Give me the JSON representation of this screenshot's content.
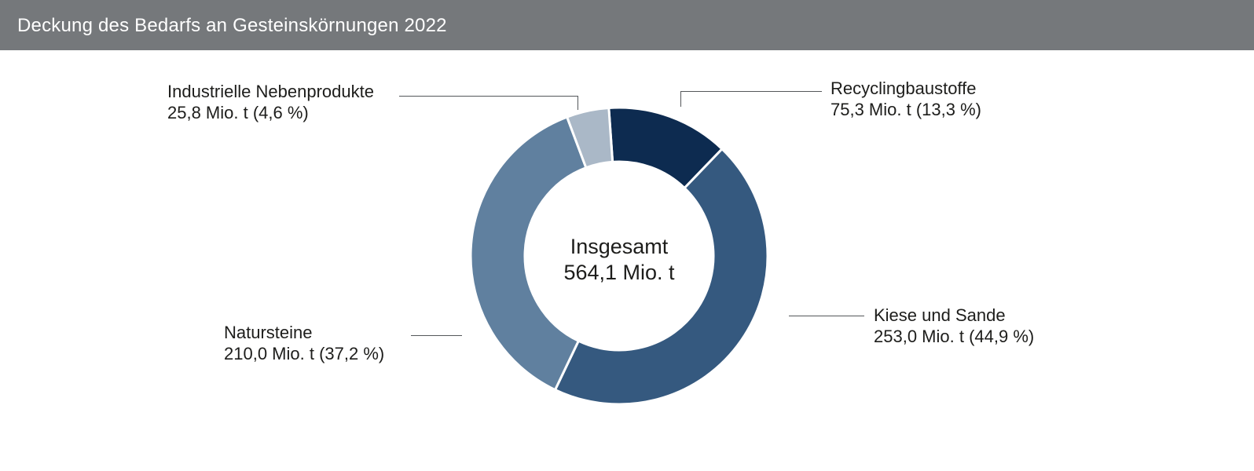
{
  "header": {
    "title": "Deckung des Bedarfs an Gesteinskörnungen 2022",
    "background_color": "#75787b",
    "text_color": "#ffffff"
  },
  "colors": {
    "page_background": "#ffffff",
    "label_text": "#1d1d1b",
    "leader_line": "#54575a",
    "segment_separator": "#ffffff"
  },
  "chart_data": {
    "type": "pie",
    "variant": "donut",
    "title": "Deckung des Bedarfs an Gesteinskörnungen 2022",
    "unit": "Mio. t",
    "total": 564.1,
    "center_label": {
      "line1": "Insgesamt",
      "line2": "564,1 Mio. t"
    },
    "start_angle_deg": -4,
    "direction": "clockwise",
    "legend_position": "callout-labels",
    "slices": [
      {
        "label": "Recyclingbaustoffe",
        "value": 75.3,
        "percent": 13.3,
        "value_label": "75,3 Mio. t (13,3 %)",
        "color": "#0d2b50"
      },
      {
        "label": "Kiese und Sande",
        "value": 253.0,
        "percent": 44.9,
        "value_label": "253,0 Mio. t (44,9 %)",
        "color": "#35597f"
      },
      {
        "label": "Natursteine",
        "value": 210.0,
        "percent": 37.2,
        "value_label": "210,0 Mio. t (37,2 %)",
        "color": "#60809f"
      },
      {
        "label": "Industrielle Nebenprodukte",
        "value": 25.8,
        "percent": 4.6,
        "value_label": "25,8 Mio. t (4,6 %)",
        "color": "#aab8c7"
      }
    ]
  }
}
